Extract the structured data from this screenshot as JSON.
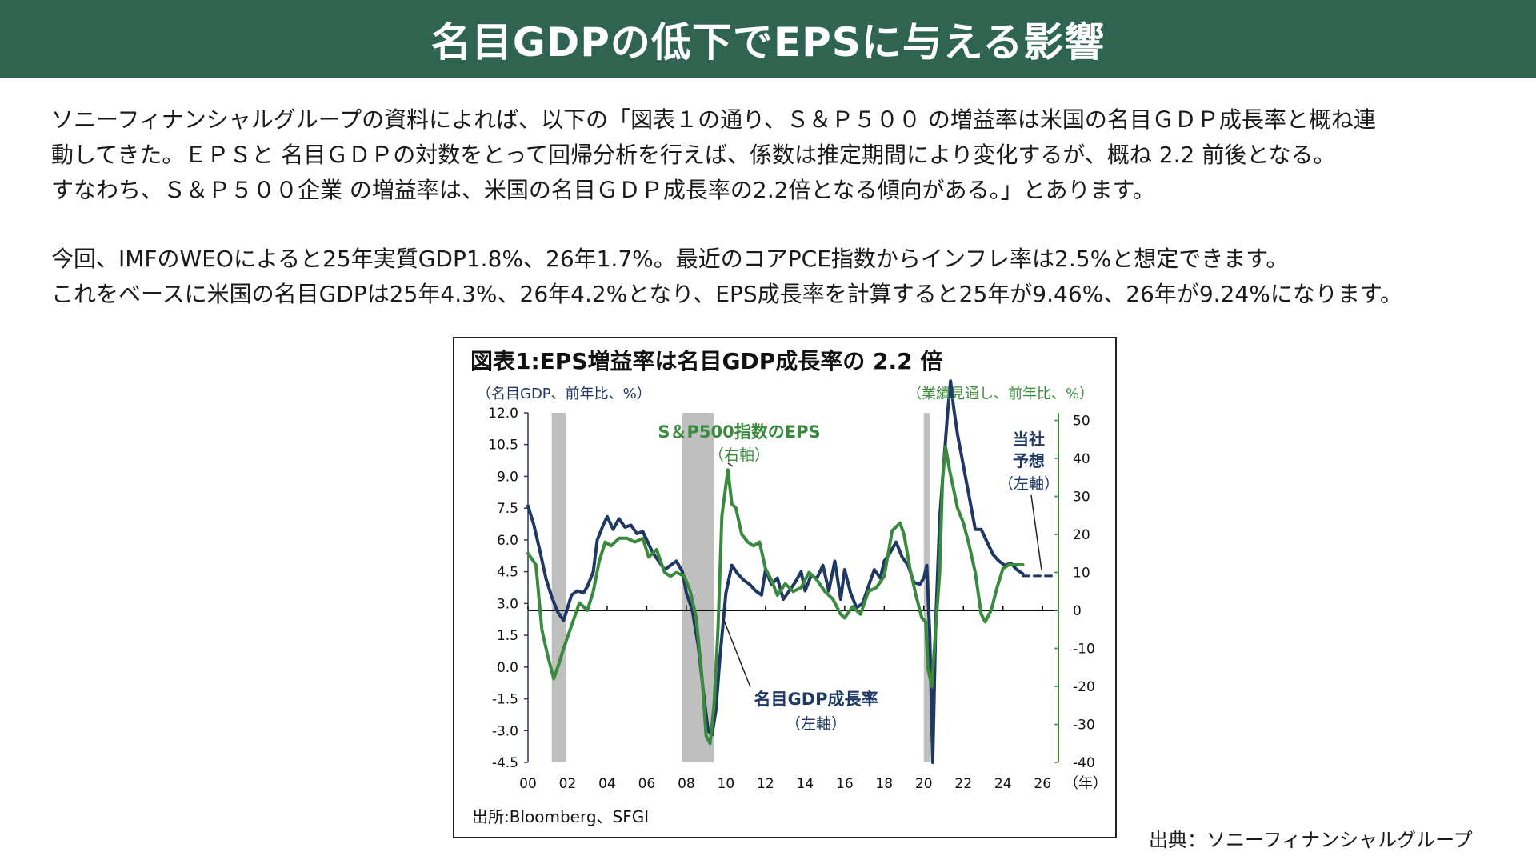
{
  "header": {
    "title": "名目GDPの低下でEPSに与える影響"
  },
  "body": {
    "paragraph1": [
      "ソニーフィナンシャルグループの資料によれば、以下の「図表１の通り、Ｓ＆Ｐ５００ の増益率は米国の名目ＧＤＰ成長率と概ね連",
      "動してきた。ＥＰＳと 名目ＧＤＰの対数をとって回帰分析を行えば、係数は推定期間により変化するが、概ね 2.2 前後となる。",
      "すなわち、Ｓ＆Ｐ５００企業 の増益率は、米国の名目ＧＤＰ成長率の2.2倍となる傾向がある。」とあります。"
    ],
    "paragraph2": [
      "今回、IMFのWEOによると25年実質GDP1.8%、26年1.7%。最近のコアPCE指数からインフレ率は2.5%と想定できます。",
      "これをベースに米国の名目GDPは25年4.3%、26年4.2%となり、EPS成長率を計算すると25年が9.46%、26年が9.24%になります。"
    ]
  },
  "caption": "出典：ソニーフィナンシャルグループ",
  "colors": {
    "banner": "#2e6450",
    "gdp_line": "#1f3864",
    "eps_line": "#3a8a3e",
    "recession": "#bfbfbf"
  },
  "chart_data": {
    "type": "line",
    "title": "図表1:EPS増益率は名目GDP成長率の 2.2 倍",
    "left_axis_label": "（名目GDP、前年比、%）",
    "right_axis_label": "（業績見通し、前年比、%）",
    "x_unit": "（年）",
    "source": "出所:Bloomberg、SFGI",
    "x_range": [
      2000,
      2026.8
    ],
    "x_ticks": [
      "00",
      "02",
      "04",
      "06",
      "08",
      "10",
      "12",
      "14",
      "16",
      "18",
      "20",
      "22",
      "24",
      "26"
    ],
    "x_tick_values": [
      2000,
      2002,
      2004,
      2006,
      2008,
      2010,
      2012,
      2014,
      2016,
      2018,
      2020,
      2022,
      2024,
      2026
    ],
    "left_ylim": [
      -4.5,
      12.0
    ],
    "left_ticks": [
      "12.0",
      "10.5",
      "9.0",
      "7.5",
      "6.0",
      "4.5",
      "3.0",
      "1.5",
      "0.0",
      "-1.5",
      "-3.0",
      "-4.5"
    ],
    "left_tick_values": [
      12.0,
      10.5,
      9.0,
      7.5,
      6.0,
      4.5,
      3.0,
      1.5,
      0.0,
      -1.5,
      -3.0,
      -4.5
    ],
    "right_ylim": [
      -40,
      52
    ],
    "right_ticks": [
      "50",
      "40",
      "30",
      "20",
      "10",
      "0",
      "-10",
      "-20",
      "-30",
      "-40"
    ],
    "right_tick_values": [
      50,
      40,
      30,
      20,
      10,
      0,
      -10,
      -20,
      -30,
      -40
    ],
    "recessions": [
      [
        2001.2,
        2001.9
      ],
      [
        2007.8,
        2009.4
      ],
      [
        2020.0,
        2020.3
      ]
    ],
    "annotations": {
      "eps_label": "S＆P500指数のEPS",
      "eps_sub": "（右軸）",
      "gdp_label": "名目GDP成長率",
      "gdp_sub": "（左軸）",
      "forecast_label_1": "当社",
      "forecast_label_2": "予想",
      "forecast_sub": "（左軸）"
    },
    "series": [
      {
        "axis": "left",
        "x": [
          2000.0,
          2000.3,
          2000.6,
          2000.9,
          2001.2,
          2001.5,
          2001.8,
          2002.0,
          2002.2,
          2002.5,
          2002.8,
          2003.0,
          2003.3,
          2003.5,
          2003.8,
          2004.0,
          2004.3,
          2004.6,
          2004.9,
          2005.2,
          2005.5,
          2005.8,
          2006.0,
          2006.3,
          2006.6,
          2006.9,
          2007.2,
          2007.5,
          2007.8,
          2008.0,
          2008.3,
          2008.6,
          2008.9,
          2009.1,
          2009.3,
          2009.5,
          2009.7,
          2010.0,
          2010.3,
          2010.6,
          2010.9,
          2011.2,
          2011.5,
          2011.8,
          2012.0,
          2012.3,
          2012.6,
          2012.9,
          2013.2,
          2013.5,
          2013.8,
          2014.0,
          2014.3,
          2014.6,
          2014.9,
          2015.2,
          2015.5,
          2015.8,
          2016.0,
          2016.3,
          2016.6,
          2016.9,
          2017.2,
          2017.5,
          2017.8,
          2018.0,
          2018.3,
          2018.6,
          2018.9,
          2019.2,
          2019.5,
          2019.8,
          2020.0,
          2020.15,
          2020.3,
          2020.45,
          2020.6,
          2020.8,
          2021.0,
          2021.2,
          2021.35,
          2021.5,
          2021.7,
          2021.9,
          2022.1,
          2022.3,
          2022.6,
          2022.9,
          2023.2,
          2023.5,
          2023.8,
          2024.1,
          2024.4,
          2024.7,
          2025.0
        ],
        "values": [
          7.6,
          6.7,
          5.5,
          4.2,
          3.3,
          2.6,
          2.2,
          2.8,
          3.4,
          3.6,
          3.5,
          3.8,
          4.5,
          6.0,
          6.7,
          7.1,
          6.5,
          7.0,
          6.6,
          6.7,
          6.3,
          6.4,
          6.0,
          5.4,
          5.0,
          4.6,
          4.8,
          5.0,
          4.5,
          3.5,
          2.7,
          1.0,
          -1.5,
          -3.0,
          -3.2,
          -2.0,
          0.5,
          3.5,
          4.8,
          4.4,
          4.1,
          3.9,
          3.6,
          3.4,
          4.6,
          3.9,
          4.2,
          3.2,
          3.6,
          4.0,
          4.5,
          3.6,
          4.3,
          4.2,
          4.8,
          3.6,
          5.0,
          3.2,
          4.6,
          3.5,
          2.8,
          3.0,
          3.8,
          4.6,
          4.2,
          5.0,
          5.4,
          5.9,
          5.2,
          4.8,
          4.0,
          3.9,
          4.2,
          4.8,
          1.5,
          -4.5,
          2.0,
          7.0,
          9.5,
          12.0,
          13.5,
          12.3,
          11.0,
          10.0,
          9.0,
          8.0,
          6.5,
          6.5,
          5.9,
          5.3,
          5.0,
          4.8,
          4.9,
          4.6,
          4.4
        ]
      },
      {
        "axis": "left",
        "style": "dashed",
        "x": [
          2025.0,
          2026.6
        ],
        "values": [
          4.3,
          4.3
        ]
      },
      {
        "axis": "right",
        "x": [
          2000.0,
          2000.4,
          2000.7,
          2001.0,
          2001.3,
          2001.5,
          2001.8,
          2002.2,
          2002.6,
          2003.0,
          2003.3,
          2003.6,
          2003.9,
          2004.2,
          2004.6,
          2005.0,
          2005.4,
          2005.8,
          2006.1,
          2006.5,
          2006.9,
          2007.2,
          2007.5,
          2007.9,
          2008.2,
          2008.5,
          2008.8,
          2009.0,
          2009.2,
          2009.4,
          2009.6,
          2009.8,
          2010.0,
          2010.1,
          2010.3,
          2010.5,
          2010.8,
          2011.1,
          2011.4,
          2011.7,
          2012.0,
          2012.3,
          2012.6,
          2013.0,
          2013.4,
          2013.8,
          2014.2,
          2014.6,
          2015.0,
          2015.4,
          2015.8,
          2016.0,
          2016.4,
          2016.8,
          2017.2,
          2017.6,
          2018.0,
          2018.4,
          2018.8,
          2019.0,
          2019.3,
          2019.6,
          2019.9,
          2020.1,
          2020.2,
          2020.4,
          2020.6,
          2020.8,
          2020.95,
          2021.1,
          2021.3,
          2021.5,
          2021.7,
          2022.0,
          2022.3,
          2022.6,
          2022.9,
          2023.1,
          2023.4,
          2023.7,
          2024.0,
          2024.3,
          2024.6,
          2025.0
        ],
        "values": [
          15,
          12,
          -5,
          -12,
          -18,
          -15,
          -10,
          -4,
          2,
          0,
          5,
          13,
          18,
          17,
          19,
          19,
          18,
          19,
          14,
          16,
          10,
          9,
          10,
          9,
          5,
          -2,
          -18,
          -33,
          -35,
          -25,
          -5,
          25,
          33,
          37,
          28,
          27,
          20,
          18,
          17,
          18,
          11,
          8,
          4,
          7,
          5,
          6,
          10,
          8,
          5,
          3,
          -1,
          -2,
          1,
          -1,
          5,
          6,
          9,
          21,
          23,
          20,
          11,
          4,
          -2,
          -3,
          -15,
          -20,
          -5,
          10,
          35,
          43,
          37,
          32,
          27,
          23,
          17,
          10,
          -1,
          -3,
          0,
          6,
          11,
          12,
          12,
          12
        ]
      }
    ]
  }
}
